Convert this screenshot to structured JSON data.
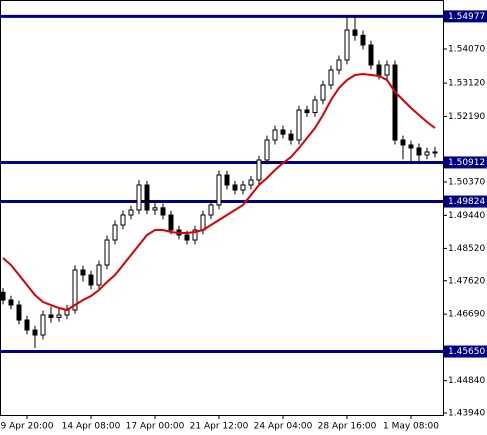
{
  "chart_data": {
    "type": "candlestick",
    "categories": [
      null,
      null,
      null,
      "9 Apr 20:00",
      null,
      null,
      null,
      null,
      null,
      null,
      null,
      "14 Apr 08:00",
      null,
      null,
      null,
      null,
      null,
      null,
      null,
      "17 Apr 00:00",
      null,
      null,
      null,
      null,
      null,
      null,
      null,
      "21 Apr 12:00",
      null,
      null,
      null,
      null,
      null,
      null,
      null,
      "24 Apr 04:00",
      null,
      null,
      null,
      null,
      null,
      null,
      null,
      "28 Apr 16:00",
      null,
      null,
      null,
      null,
      null,
      null,
      null,
      "1 May 08:00",
      null,
      null,
      null
    ],
    "open": [
      1.473,
      1.47084,
      1.46945,
      1.46527,
      1.46249,
      1.4611,
      1.46667,
      1.466,
      1.46667,
      1.46806,
      1.47919,
      1.4778,
      1.47501,
      1.48058,
      1.48754,
      1.49171,
      1.4945,
      1.49589,
      1.50285,
      1.49589,
      1.4965,
      1.4945,
      1.49032,
      1.48893,
      1.48754,
      1.49032,
      1.4945,
      1.49728,
      1.50563,
      1.50285,
      1.50145,
      1.50285,
      1.50424,
      1.5098,
      1.51537,
      1.51815,
      1.517,
      1.51537,
      1.52372,
      1.523,
      1.5265,
      1.53068,
      1.53485,
      1.53763,
      1.54598,
      1.5445,
      1.54181,
      1.53624,
      1.53346,
      1.53624,
      1.51537,
      1.51398,
      1.51315,
      1.5112,
      1.51203
    ],
    "high": [
      1.4742,
      1.47204,
      1.47065,
      1.46647,
      1.46369,
      1.46787,
      1.469,
      1.4685,
      1.4695,
      1.4805,
      1.4804,
      1.479,
      1.4818,
      1.4888,
      1.493,
      1.4958,
      1.4971,
      1.5042,
      1.504,
      1.498,
      1.4977,
      1.4957,
      1.4915,
      1.4901,
      1.4915,
      1.4957,
      1.4985,
      1.5069,
      1.5068,
      1.504,
      1.504,
      1.5054,
      1.511,
      1.5166,
      1.5194,
      1.5194,
      1.5182,
      1.5249,
      1.5249,
      1.5277,
      1.5319,
      1.5361,
      1.5389,
      1.54977,
      1.54977,
      1.5458,
      1.543,
      1.5375,
      1.5375,
      1.5375,
      1.5166,
      1.5152,
      1.5144,
      1.5132,
      1.5135
    ],
    "low": [
      1.46964,
      1.46825,
      1.46407,
      1.46129,
      1.4575,
      1.4599,
      1.4645,
      1.4648,
      1.4655,
      1.467,
      1.476,
      1.4738,
      1.4738,
      1.4794,
      1.4863,
      1.4905,
      1.4933,
      1.4947,
      1.4947,
      1.4945,
      1.4933,
      1.4891,
      1.4877,
      1.4863,
      1.4863,
      1.4891,
      1.4933,
      1.4961,
      1.5016,
      1.5002,
      1.5002,
      1.5016,
      1.503,
      1.5086,
      1.5141,
      1.5158,
      1.5141,
      1.5141,
      1.5218,
      1.5218,
      1.5253,
      1.5295,
      1.5336,
      1.5364,
      1.543,
      1.5406,
      1.535,
      1.5322,
      1.5322,
      1.5141,
      1.51,
      1.50912,
      1.50912,
      1.51,
      1.5105
    ],
    "close": [
      1.47084,
      1.46945,
      1.46527,
      1.46249,
      1.4611,
      1.46667,
      1.466,
      1.46667,
      1.46806,
      1.47919,
      1.4778,
      1.47501,
      1.48058,
      1.48754,
      1.49171,
      1.4945,
      1.49589,
      1.50285,
      1.49589,
      1.4965,
      1.4945,
      1.49032,
      1.48893,
      1.48754,
      1.49032,
      1.4945,
      1.49728,
      1.50563,
      1.50285,
      1.50145,
      1.50285,
      1.50424,
      1.5098,
      1.51537,
      1.51815,
      1.517,
      1.51537,
      1.52372,
      1.523,
      1.5265,
      1.53068,
      1.53485,
      1.53763,
      1.54598,
      1.5445,
      1.54181,
      1.53624,
      1.53346,
      1.53624,
      1.51537,
      1.51398,
      1.51315,
      1.5112,
      1.51203,
      1.51175
    ],
    "moving_average": {
      "color": "#e00000",
      "values": [
        1.48253,
        1.48058,
        1.4778,
        1.47501,
        1.47223,
        1.47028,
        1.46945,
        1.46861,
        1.46806,
        1.46945,
        1.47084,
        1.47196,
        1.47362,
        1.47585,
        1.4778,
        1.48058,
        1.48336,
        1.48615,
        1.48893,
        1.49032,
        1.49032,
        1.48977,
        1.48949,
        1.48949,
        1.48977,
        1.49032,
        1.49171,
        1.4931,
        1.4945,
        1.49589,
        1.49728,
        1.50006,
        1.50285,
        1.50479,
        1.50702,
        1.50897,
        1.51064,
        1.51314,
        1.51592,
        1.51871,
        1.52233,
        1.5265,
        1.52984,
        1.53207,
        1.53346,
        1.53374,
        1.53346,
        1.53318,
        1.53207,
        1.52873,
        1.5265,
        1.52427,
        1.52233,
        1.52038,
        1.51871
      ]
    },
    "up_color": "#ffffff",
    "down_color": "#000000",
    "wick_color": "#000000",
    "ylim": [
      1.43884,
      1.55433
    ],
    "yticks": [
      {
        "value": 1.5407,
        "label": "1.54070"
      },
      {
        "value": 1.5312,
        "label": "1.53120"
      },
      {
        "value": 1.5219,
        "label": "1.52190"
      },
      {
        "value": 1.5037,
        "label": "1.50370"
      },
      {
        "value": 1.4944,
        "label": "1.49440"
      },
      {
        "value": 1.4852,
        "label": "1.48520"
      },
      {
        "value": 1.4762,
        "label": "1.47620"
      },
      {
        "value": 1.4669,
        "label": "1.46690"
      },
      {
        "value": 1.4484,
        "label": "1.44840"
      },
      {
        "value": 1.4394,
        "label": "1.43940"
      }
    ],
    "levels": {
      "color": "#000080",
      "values": [
        1.54977,
        1.50912,
        1.49824,
        1.4565
      ],
      "value_labels": [
        "1.54977",
        "1.50912",
        "1.49824",
        "1.45650"
      ]
    }
  }
}
